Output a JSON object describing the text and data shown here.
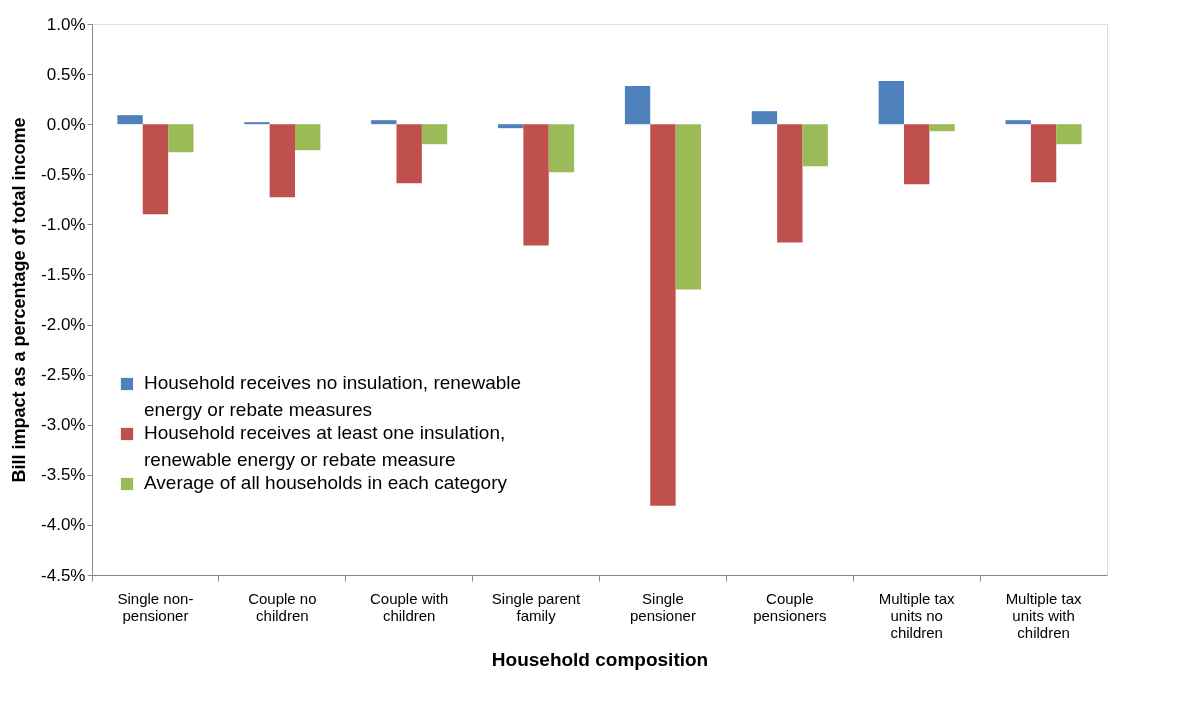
{
  "chart_data": {
    "type": "bar",
    "xlabel": "Household composition",
    "ylabel": "Bill impact as a percentage of total income",
    "categories": [
      "Single non-pensioner",
      "Couple no children",
      "Couple with children",
      "Single parent family",
      "Single pensioner",
      "Couple pensioners",
      "Multiple tax units no children",
      "Multiple tax units with children"
    ],
    "series": [
      {
        "name": "Household receives no insulation, renewable energy or rebate measures",
        "color": "#4f81bd",
        "values": [
          0.09,
          0.02,
          0.04,
          -0.04,
          0.38,
          0.13,
          0.43,
          0.04
        ]
      },
      {
        "name": "Household receives at least one insulation, renewable energy or rebate measure",
        "color": "#c0504d",
        "values": [
          -0.9,
          -0.73,
          -0.59,
          -1.21,
          -3.81,
          -1.18,
          -0.6,
          -0.58
        ]
      },
      {
        "name": "Average of all households in each category",
        "color": "#9bbb59",
        "values": [
          -0.28,
          -0.26,
          -0.2,
          -0.48,
          -1.65,
          -0.42,
          -0.07,
          -0.2
        ]
      }
    ],
    "ylim": [
      -4.5,
      1.0
    ],
    "yticks": [
      {
        "value": -4.5,
        "label": "-4.5%"
      },
      {
        "value": -4.0,
        "label": "-4.0%"
      },
      {
        "value": -3.5,
        "label": "-3.5%"
      },
      {
        "value": -3.0,
        "label": "-3.0%"
      },
      {
        "value": -2.5,
        "label": "-2.5%"
      },
      {
        "value": -2.0,
        "label": "-2.0%"
      },
      {
        "value": -1.5,
        "label": "-1.5%"
      },
      {
        "value": -1.0,
        "label": "-1.0%"
      },
      {
        "value": -0.5,
        "label": "-0.5%"
      },
      {
        "value": 0.0,
        "label": "0.0%"
      },
      {
        "value": 0.5,
        "label": "0.5%"
      },
      {
        "value": 1.0,
        "label": "1.0%"
      }
    ],
    "grid": false,
    "legend": "bottom left"
  }
}
